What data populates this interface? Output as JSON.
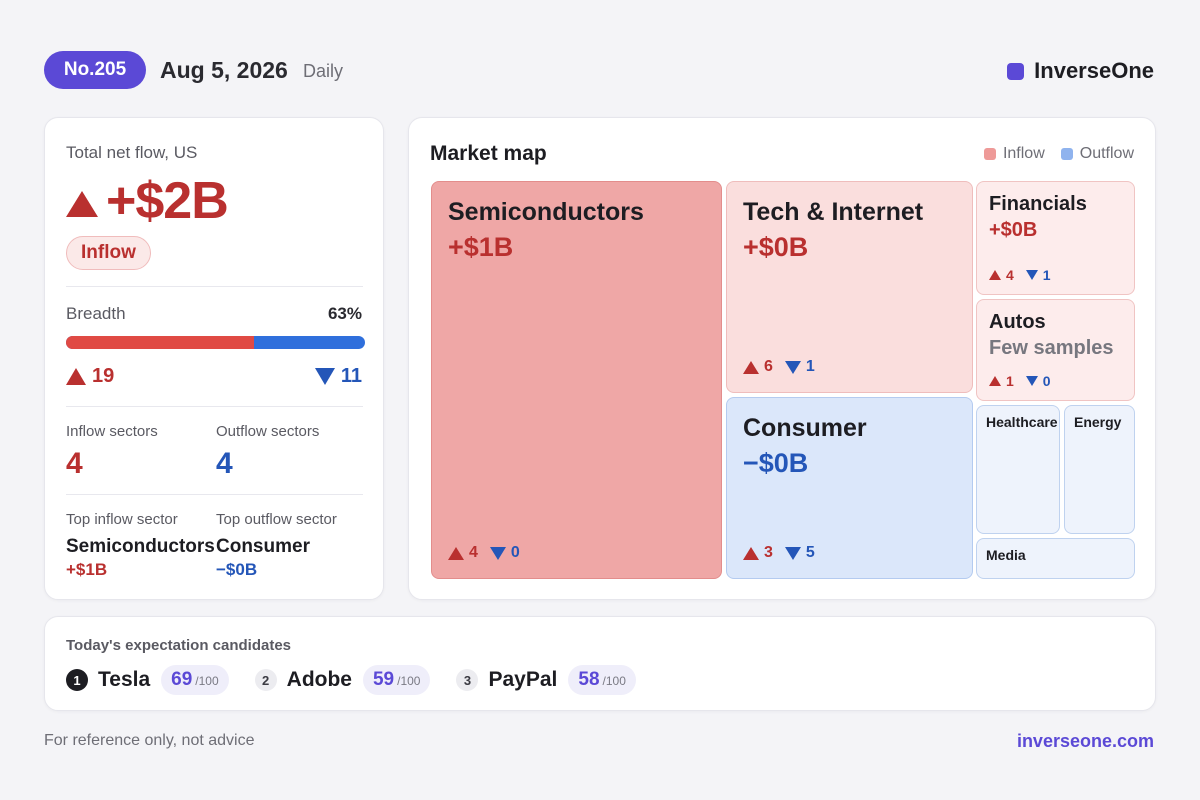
{
  "header": {
    "issue": "No.205",
    "date": "Aug 5, 2026",
    "frequency": "Daily",
    "brand": "InverseOne",
    "brand_color": "#5b49d6"
  },
  "summary": {
    "label": "Total net flow, US",
    "net_flow": "+$2B",
    "badge": "Inflow",
    "breadth_label": "Breadth",
    "breadth_pct": "63%",
    "breadth_fraction": 0.63,
    "up_count": "19",
    "down_count": "11",
    "inflow_sectors_label": "Inflow sectors",
    "inflow_sectors": "4",
    "outflow_sectors_label": "Outflow sectors",
    "outflow_sectors": "4",
    "top_inflow_label": "Top inflow sector",
    "top_inflow_name": "Semiconductors",
    "top_inflow_value": "+$1B",
    "top_outflow_label": "Top outflow sector",
    "top_outflow_name": "Consumer",
    "top_outflow_value": "−$0B"
  },
  "map": {
    "title": "Market map",
    "legend_inflow": "Inflow",
    "legend_outflow": "Outflow",
    "inflow_color": "#ee9a98",
    "outflow_color": "#8fb3ee",
    "tiles": {
      "semiconductors": {
        "name": "Semiconductors",
        "value": "+$1B",
        "up": "4",
        "down": "0"
      },
      "tech": {
        "name": "Tech & Internet",
        "value": "+$0B",
        "up": "6",
        "down": "1"
      },
      "consumer": {
        "name": "Consumer",
        "value": "−$0B",
        "up": "3",
        "down": "5"
      },
      "financials": {
        "name": "Financials",
        "value": "+$0B",
        "up": "4",
        "down": "1"
      },
      "autos": {
        "name": "Autos",
        "value": "Few samples",
        "up": "1",
        "down": "0"
      },
      "healthcare": {
        "name": "Healthcare"
      },
      "energy": {
        "name": "Energy"
      },
      "media": {
        "name": "Media"
      }
    }
  },
  "candidates": {
    "title": "Today's expectation candidates",
    "items": [
      {
        "rank": "1",
        "name": "Tesla",
        "score": "69",
        "max": "/100"
      },
      {
        "rank": "2",
        "name": "Adobe",
        "score": "59",
        "max": "/100"
      },
      {
        "rank": "3",
        "name": "PayPal",
        "score": "58",
        "max": "/100"
      }
    ]
  },
  "footer": {
    "note": "For reference only, not advice",
    "url": "inverseone.com"
  }
}
